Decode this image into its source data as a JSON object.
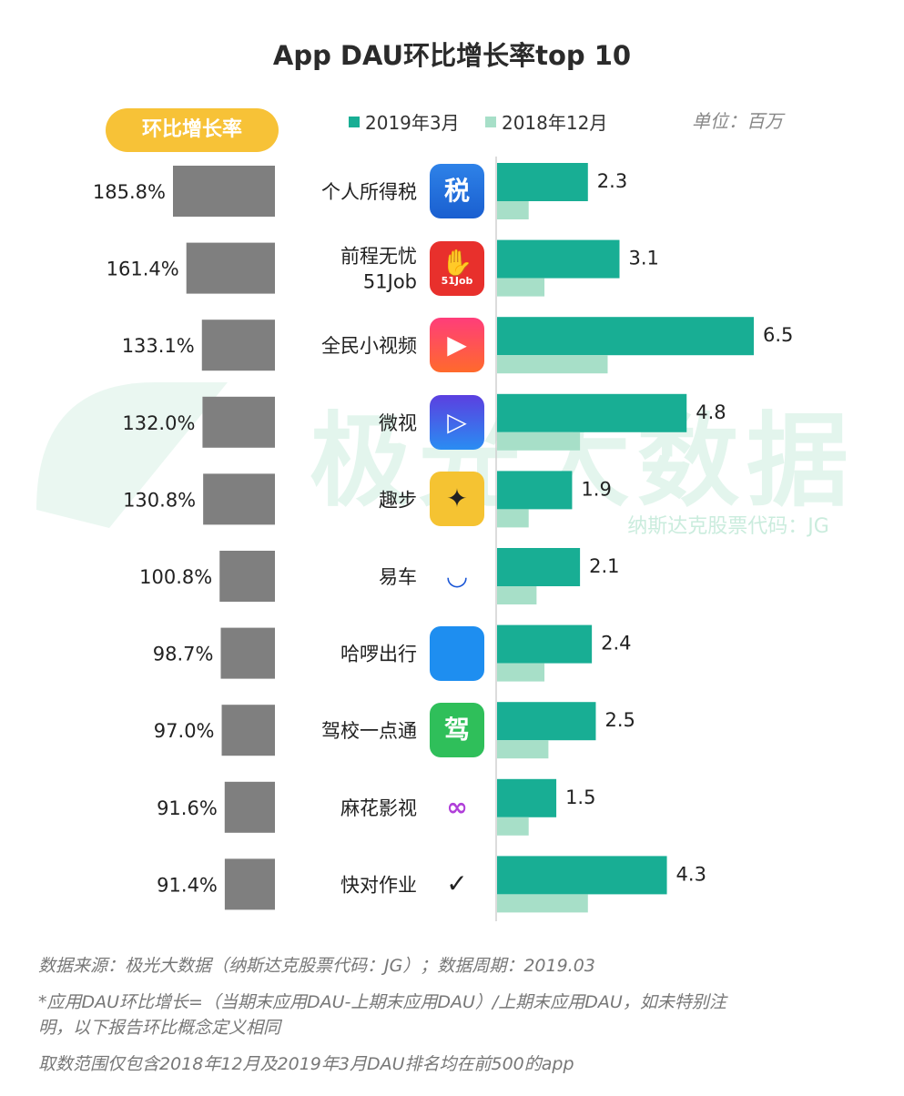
{
  "title": "App DAU环比增长率top 10",
  "badge_label": "环比增长率",
  "unit_label": "单位：百万",
  "colors": {
    "current": "#18ae94",
    "previous": "#a7dfc8",
    "growth_bar": "#7f7f7f",
    "badge": "#f7c237"
  },
  "chart_data": {
    "type": "bar",
    "categories": [
      "个人所得税",
      "前程无忧\n51Job",
      "全民小视频",
      "微视",
      "趣步",
      "易车",
      "哈啰出行",
      "驾校一点通",
      "麻花影视",
      "快对作业"
    ],
    "growth_rate_labels": [
      "185.8%",
      "161.4%",
      "133.1%",
      "132.0%",
      "130.8%",
      "100.8%",
      "98.7%",
      "97.0%",
      "91.6%",
      "91.4%"
    ],
    "growth_rates": [
      185.8,
      161.4,
      133.1,
      132.0,
      130.8,
      100.8,
      98.7,
      97.0,
      91.6,
      91.4
    ],
    "series": [
      {
        "name": "2019年3月",
        "values": [
          2.3,
          3.1,
          6.5,
          4.8,
          1.9,
          2.1,
          2.4,
          2.5,
          1.5,
          4.3
        ],
        "labels": [
          "2.3",
          "3.1",
          "6.5",
          "4.8",
          "1.9",
          "2.1",
          "2.4",
          "2.5",
          "1.5",
          "4.3"
        ]
      },
      {
        "name": "2018年12月",
        "values": [
          0.8,
          1.2,
          2.8,
          2.1,
          0.8,
          1.0,
          1.2,
          1.3,
          0.8,
          2.3
        ]
      }
    ],
    "xlabel": "",
    "ylabel": ""
  },
  "icons": [
    {
      "name": "tax-app-icon",
      "text": "税"
    },
    {
      "name": "51job-app-icon",
      "text": "51Job"
    },
    {
      "name": "quanmin-video-app-icon",
      "text": ""
    },
    {
      "name": "weishi-app-icon",
      "text": ""
    },
    {
      "name": "qubu-app-icon",
      "text": ""
    },
    {
      "name": "yiche-app-icon",
      "text": ""
    },
    {
      "name": "hellobike-app-icon",
      "text": ""
    },
    {
      "name": "jiaxiao-app-icon",
      "text": "驾"
    },
    {
      "name": "mahua-app-icon",
      "text": ""
    },
    {
      "name": "kuaidui-app-icon",
      "text": ""
    }
  ],
  "watermark": {
    "title": "极光大数据",
    "subtitle": "纳斯达克股票代码：JG"
  },
  "footnotes": [
    "数据来源：极光大数据（纳斯达克股票代码：JG）；数据周期：2019.03",
    "*应用DAU环比增长=（当期末应用DAU-上期末应用DAU）/上期末应用DAU，如未特别注",
    "明，以下报告环比概念定义相同",
    "取数范围仅包含2018年12月及2019年3月DAU排名均在前500的app"
  ]
}
